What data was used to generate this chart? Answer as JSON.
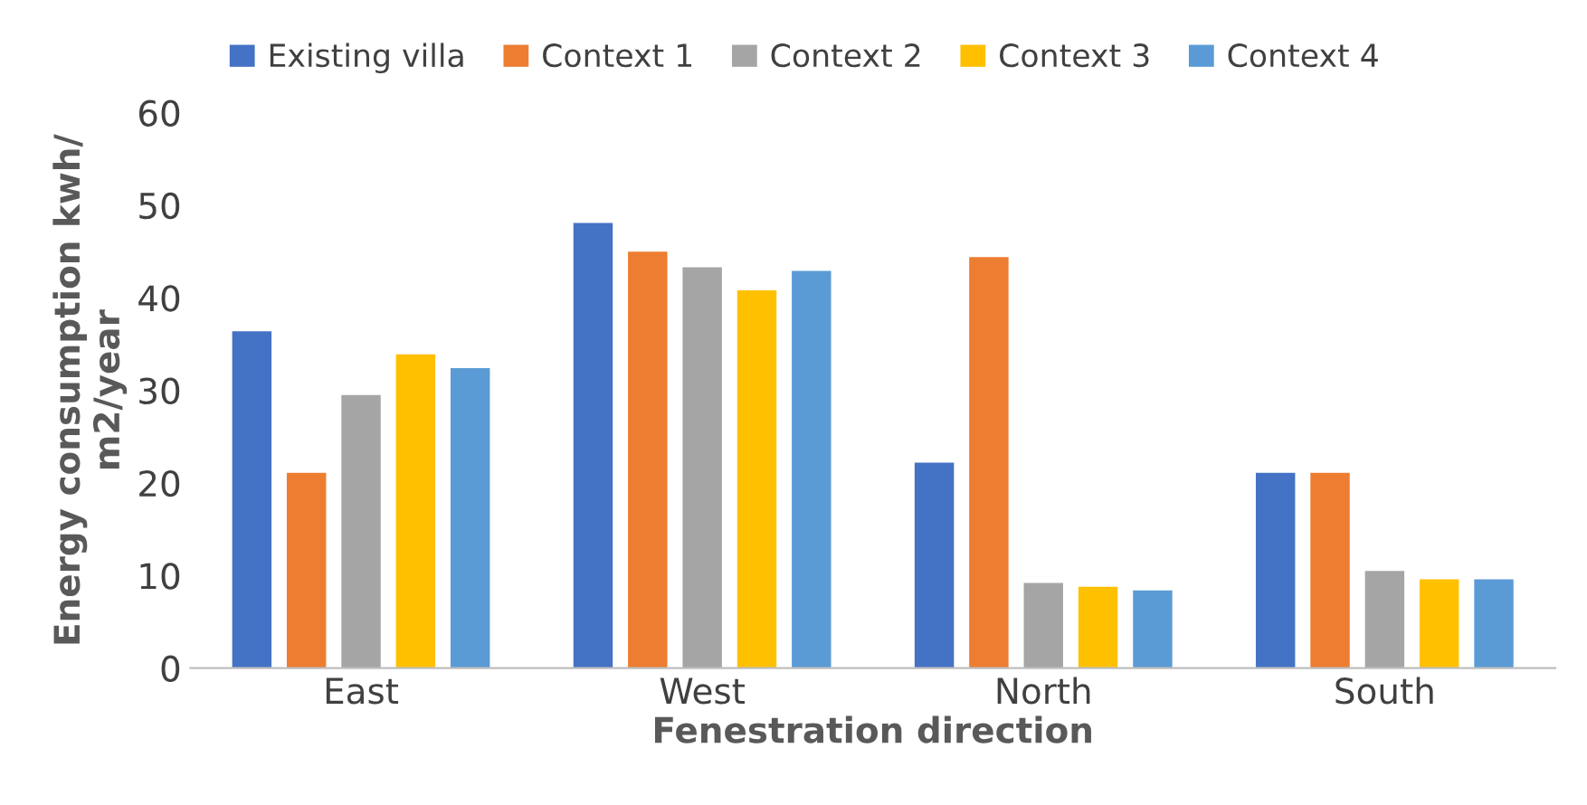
{
  "chart_data": {
    "type": "bar",
    "xlabel": "Fenestration direction",
    "ylabel": "Energy consumption kwh/\nm2/year",
    "categories": [
      "East",
      "West",
      "North",
      "South"
    ],
    "series": [
      {
        "name": "Existing villa",
        "color": "#4472c4",
        "values": [
          36.4,
          48.1,
          22.2,
          21.1
        ]
      },
      {
        "name": "Context 1",
        "color": "#ed7d31",
        "values": [
          21.1,
          45.0,
          44.4,
          21.1
        ]
      },
      {
        "name": "Context 2",
        "color": "#a5a5a5",
        "values": [
          29.5,
          43.3,
          9.2,
          10.5
        ]
      },
      {
        "name": "Context 3",
        "color": "#ffc000",
        "values": [
          33.9,
          40.8,
          8.8,
          9.6
        ]
      },
      {
        "name": "Context 4",
        "color": "#5b9bd5",
        "values": [
          32.4,
          42.9,
          8.4,
          9.6
        ]
      }
    ],
    "ylim": [
      0,
      60
    ],
    "yticks": [
      0,
      10,
      20,
      30,
      40,
      50,
      60
    ],
    "grid": false,
    "legend": "top"
  }
}
